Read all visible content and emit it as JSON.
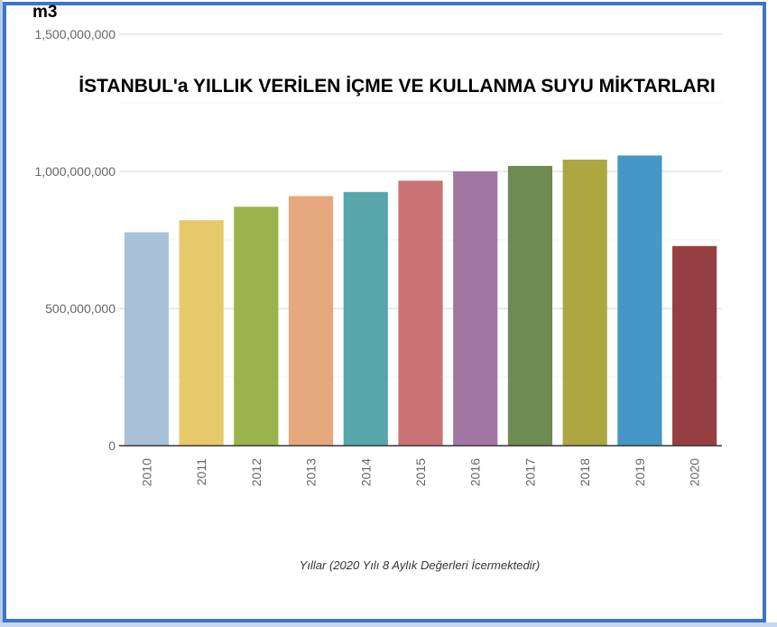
{
  "chart_data": {
    "type": "bar",
    "unit_label": "m3",
    "title": "İSTANBUL'a YILLIK VERİLEN İÇME VE KULLANMA SUYU MİKTARLARI",
    "xlabel": "Yıllar (2020 Yılı 8 Aylık Değerleri İcermektedir)",
    "ylabel": "m3",
    "categories": [
      "2010",
      "2011",
      "2012",
      "2013",
      "2014",
      "2015",
      "2016",
      "2017",
      "2018",
      "2019",
      "2020"
    ],
    "values": [
      778000000,
      822000000,
      871000000,
      910000000,
      925000000,
      966000000,
      1000000000,
      1020000000,
      1043000000,
      1058000000,
      728000000
    ],
    "colors": [
      "#a9c1d7",
      "#e7c86a",
      "#9ab34b",
      "#e7a77d",
      "#57a6aa",
      "#c97374",
      "#a276a3",
      "#6e8b51",
      "#ada641",
      "#4497c6",
      "#963f43"
    ],
    "ylim": [
      0,
      1500000000
    ],
    "yticks": [
      0,
      500000000,
      1000000000,
      1500000000
    ],
    "ytick_labels": [
      "0",
      "500,000,000",
      "1,000,000,000",
      "1,500,000,000"
    ],
    "grid": true
  }
}
